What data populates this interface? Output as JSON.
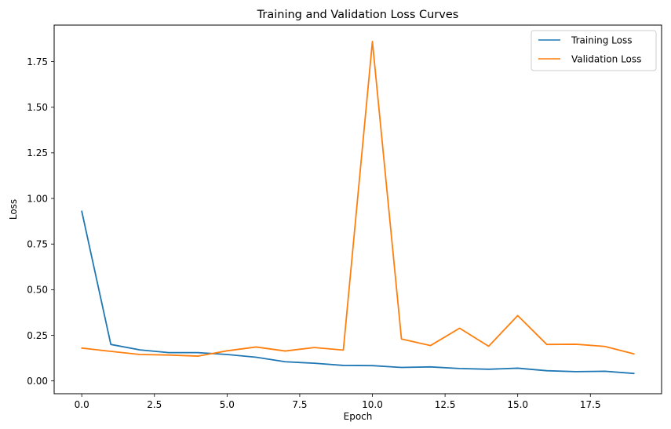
{
  "chart_data": {
    "type": "line",
    "title": "Training and Validation Loss Curves",
    "xlabel": "Epoch",
    "ylabel": "Loss",
    "xlim": [
      -0.95,
      19.95
    ],
    "ylim": [
      -0.07,
      1.95
    ],
    "xticks": [
      0.0,
      2.5,
      5.0,
      7.5,
      10.0,
      12.5,
      15.0,
      17.5
    ],
    "xtick_labels": [
      "0.0",
      "2.5",
      "5.0",
      "7.5",
      "10.0",
      "12.5",
      "15.0",
      "17.5"
    ],
    "yticks": [
      0.0,
      0.25,
      0.5,
      0.75,
      1.0,
      1.25,
      1.5,
      1.75
    ],
    "ytick_labels": [
      "0.00",
      "0.25",
      "0.50",
      "0.75",
      "1.00",
      "1.25",
      "1.50",
      "1.75"
    ],
    "grid": false,
    "legend_position": "top-right",
    "x": [
      0,
      1,
      2,
      3,
      4,
      5,
      6,
      7,
      8,
      9,
      10,
      11,
      12,
      13,
      14,
      15,
      16,
      17,
      18,
      19
    ],
    "series": [
      {
        "name": "Training Loss",
        "color": "#1f77b4",
        "values": [
          0.93,
          0.2,
          0.17,
          0.155,
          0.155,
          0.145,
          0.13,
          0.105,
          0.097,
          0.085,
          0.084,
          0.074,
          0.077,
          0.068,
          0.064,
          0.07,
          0.056,
          0.051,
          0.053,
          0.041
        ]
      },
      {
        "name": "Validation Loss",
        "color": "#ff7f0e",
        "values": [
          0.18,
          0.162,
          0.145,
          0.142,
          0.136,
          0.165,
          0.186,
          0.164,
          0.183,
          0.169,
          1.86,
          0.23,
          0.194,
          0.289,
          0.19,
          0.358,
          0.2,
          0.201,
          0.189,
          0.148
        ]
      }
    ]
  }
}
